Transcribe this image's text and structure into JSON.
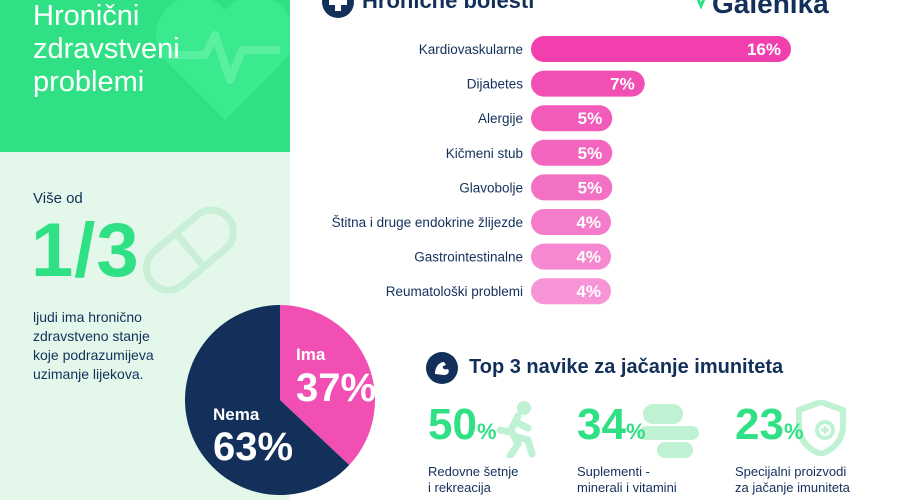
{
  "header": {
    "title": "Hronični\nzdravstveni\nproblemi",
    "section_title": "Hronične bolesti",
    "logo_text": "Galenika"
  },
  "stat": {
    "prefix": "Više od",
    "fraction": "1/3",
    "description": "ljudi ima hronično\nzdravstveno stanje\nkoje podrazumijeva\nuzimanje lijekova."
  },
  "pie": {
    "ima_label": "Ima",
    "ima_value": "37%",
    "nema_label": "Nema",
    "nema_value": "63%"
  },
  "habits": {
    "title": "Top 3 navike za jačanje imuniteta",
    "items": [
      {
        "value": "50",
        "pct": "%",
        "label": "Redovne šetnje\ni rekreacija",
        "icon": "runner-icon"
      },
      {
        "value": "34",
        "pct": "%",
        "label": "Suplementi -\nminerali i vitamini",
        "icon": "pills-icon"
      },
      {
        "value": "23",
        "pct": "%",
        "label": "Specijalni proizvodi\nza jačanje imuniteta",
        "icon": "shield-icon"
      }
    ]
  },
  "colors": {
    "green": "#2fe184",
    "navy": "#13305b",
    "pink": "#f24fb4",
    "light_green": "#e3f7ea"
  },
  "chart_data": [
    {
      "type": "bar",
      "orientation": "horizontal",
      "title": "Hronične bolesti",
      "categories": [
        "Kardiovaskularne",
        "Dijabetes",
        "Alergije",
        "Kičmeni stub",
        "Glavobolje",
        "Štitna i druge endokrine žlijezde",
        "Gastrointestinalne",
        "Reumatološki problemi"
      ],
      "values": [
        16,
        7,
        5,
        5,
        5,
        4,
        4,
        4
      ],
      "value_labels": [
        "16%",
        "7%",
        "5%",
        "5%",
        "5%",
        "4%",
        "4%",
        "4%"
      ],
      "colors": [
        "#f23fae",
        "#f24fb4",
        "#f25bb9",
        "#f366bf",
        "#f371c4",
        "#f47ccb",
        "#f588d0",
        "#f694d6"
      ]
    },
    {
      "type": "pie",
      "categories": [
        "Ima",
        "Nema"
      ],
      "values": [
        37,
        63
      ],
      "colors": [
        "#f24fb4",
        "#13305b"
      ]
    }
  ]
}
